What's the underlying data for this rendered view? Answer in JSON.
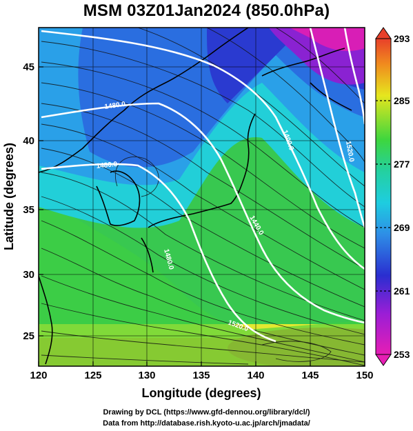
{
  "title": "MSM 03Z01Jan2024 (850.0hPa)",
  "credits": {
    "line1": "Drawing by DCL (https://www.gfd-dennou.org/library/dcl/)",
    "line2": "Data from http://database.rish.kyoto-u.ac.jp/arch/jmadata/"
  },
  "map": {
    "x_axis_label": "Longitude (degrees)",
    "y_axis_label": "Latitude  (degrees)",
    "lon_range": [
      120,
      150
    ],
    "lat_range": [
      22.4,
      47.6
    ],
    "x_ticks": [
      "120",
      "125",
      "130",
      "135",
      "140",
      "145",
      "150"
    ],
    "y_ticks": [
      "25",
      "30",
      "35",
      "40",
      "45"
    ],
    "contour_labels": [
      "1480.0",
      "1480.0",
      "1400.0",
      "1440.0",
      "1520.0",
      "1480.0",
      "1520.0"
    ]
  },
  "colorbar": {
    "range": [
      253,
      293
    ],
    "tick_labels": [
      "293",
      "285",
      "277",
      "269",
      "261",
      "253"
    ]
  }
}
